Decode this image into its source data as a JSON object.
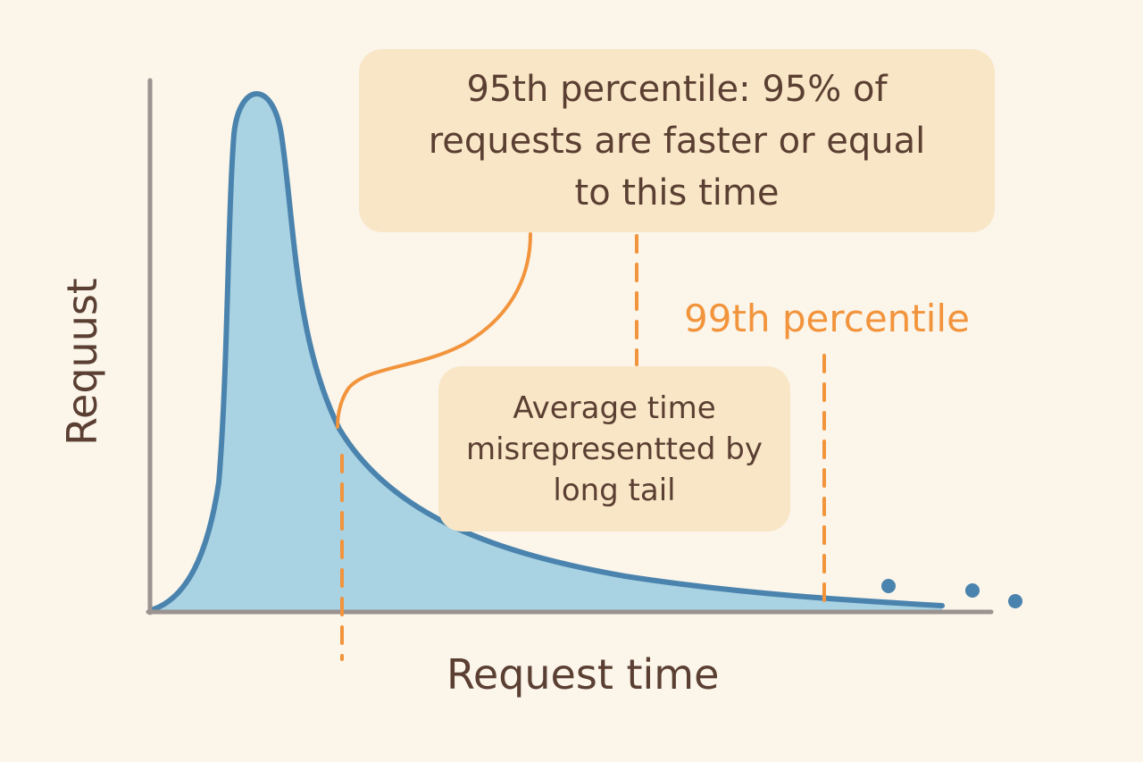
{
  "diagram": {
    "callout_main": "95th percentile: 95% of requests are faster or equal to this time",
    "callout_average": "Average time misrepresentted by long tail",
    "label_99th": "99th percentile",
    "axis_x_label": "Request time",
    "axis_y_label": "Requust"
  },
  "colors": {
    "background": "#fbf5ea",
    "curve_fill": "#a9d2e3",
    "curve_stroke": "#4a83ad",
    "axis": "#9b9390",
    "marker_orange": "#f2943c",
    "callout_fill": "#f9e6c6",
    "text": "#5a3f32"
  }
}
